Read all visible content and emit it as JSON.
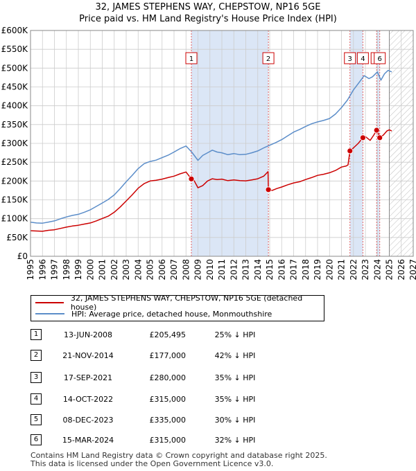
{
  "title_line1": "32, JAMES STEPHENS WAY, CHEPSTOW, NP16 5GE",
  "title_line2": "Price paid vs. HM Land Registry's House Price Index (HPI)",
  "chart_data": {
    "type": "line",
    "xlim": [
      1995,
      2027
    ],
    "ylim": [
      0,
      600000
    ],
    "x_ticks": [
      1995,
      1996,
      1997,
      1998,
      1999,
      2000,
      2001,
      2002,
      2003,
      2004,
      2005,
      2006,
      2007,
      2008,
      2009,
      2010,
      2011,
      2012,
      2013,
      2014,
      2015,
      2016,
      2017,
      2018,
      2019,
      2020,
      2021,
      2022,
      2023,
      2024,
      2025,
      2026,
      2027
    ],
    "y_ticks": [
      0,
      50000,
      100000,
      150000,
      200000,
      250000,
      300000,
      350000,
      400000,
      450000,
      500000,
      550000,
      600000
    ],
    "y_tick_labels": [
      "£0",
      "£50K",
      "£100K",
      "£150K",
      "£200K",
      "£250K",
      "£300K",
      "£350K",
      "£400K",
      "£450K",
      "£500K",
      "£550K",
      "£600K"
    ],
    "shaded_ranges": [
      [
        2008.45,
        2014.89
      ],
      [
        2021.71,
        2022.79
      ],
      [
        2023.94,
        2024.2
      ]
    ],
    "future_start": 2025.0,
    "colors": {
      "property": "#cc0000",
      "hpi": "#5b8dc9",
      "shade": "#dbe6f6",
      "marker_line": "#e05050",
      "grid": "#cccccc"
    },
    "series": [
      {
        "name": "32, JAMES STEPHENS WAY, CHEPSTOW, NP16 5GE (detached house)",
        "color": "#cc0000",
        "points": [
          [
            1995.0,
            68000
          ],
          [
            1996.0,
            66500
          ],
          [
            1996.5,
            69000
          ],
          [
            1997.0,
            70500
          ],
          [
            1997.5,
            74000
          ],
          [
            1998.0,
            77500
          ],
          [
            1998.5,
            80500
          ],
          [
            1999.0,
            82500
          ],
          [
            1999.5,
            85500
          ],
          [
            2000.0,
            88500
          ],
          [
            2000.5,
            94000
          ],
          [
            2001.0,
            100500
          ],
          [
            2001.5,
            106500
          ],
          [
            2002.0,
            117000
          ],
          [
            2002.5,
            131000
          ],
          [
            2003.0,
            147000
          ],
          [
            2003.5,
            163000
          ],
          [
            2004.0,
            181000
          ],
          [
            2004.5,
            193000
          ],
          [
            2005.0,
            200000
          ],
          [
            2005.5,
            202000
          ],
          [
            2006.0,
            205000
          ],
          [
            2006.5,
            209000
          ],
          [
            2007.0,
            213000
          ],
          [
            2007.5,
            219000
          ],
          [
            2008.0,
            224000
          ],
          [
            2008.45,
            205495
          ],
          [
            2008.7,
            200000
          ],
          [
            2009.0,
            182000
          ],
          [
            2009.4,
            188000
          ],
          [
            2009.8,
            200000
          ],
          [
            2010.2,
            206000
          ],
          [
            2010.6,
            204000
          ],
          [
            2011.0,
            205000
          ],
          [
            2011.5,
            201000
          ],
          [
            2012.0,
            203000
          ],
          [
            2012.5,
            201000
          ],
          [
            2013.0,
            200500
          ],
          [
            2013.5,
            203000
          ],
          [
            2014.0,
            206000
          ],
          [
            2014.5,
            213000
          ],
          [
            2014.86,
            225000
          ],
          [
            2014.89,
            177000
          ],
          [
            2015.2,
            175000
          ],
          [
            2015.6,
            180000
          ],
          [
            2016.0,
            184000
          ],
          [
            2016.5,
            190000
          ],
          [
            2017.0,
            195000
          ],
          [
            2017.5,
            198000
          ],
          [
            2018.0,
            204000
          ],
          [
            2018.5,
            209000
          ],
          [
            2019.0,
            215000
          ],
          [
            2019.5,
            218000
          ],
          [
            2020.0,
            222000
          ],
          [
            2020.5,
            228000
          ],
          [
            2021.0,
            237000
          ],
          [
            2021.4,
            240000
          ],
          [
            2021.55,
            243000
          ],
          [
            2021.71,
            280000
          ],
          [
            2022.0,
            288000
          ],
          [
            2022.4,
            300000
          ],
          [
            2022.79,
            315000
          ],
          [
            2023.0,
            318000
          ],
          [
            2023.4,
            308000
          ],
          [
            2023.7,
            322000
          ],
          [
            2023.94,
            335000
          ],
          [
            2024.1,
            325000
          ],
          [
            2024.2,
            315000
          ],
          [
            2024.5,
            322000
          ],
          [
            2024.8,
            333000
          ],
          [
            2025.0,
            336000
          ],
          [
            2025.2,
            333000
          ]
        ]
      },
      {
        "name": "HPI: Average price, detached house, Monmouthshire",
        "color": "#5b8dc9",
        "points": [
          [
            1995.0,
            90500
          ],
          [
            1995.5,
            88500
          ],
          [
            1996.0,
            88000
          ],
          [
            1996.5,
            91000
          ],
          [
            1997.0,
            94000
          ],
          [
            1997.5,
            99500
          ],
          [
            1998.0,
            104500
          ],
          [
            1998.5,
            108500
          ],
          [
            1999.0,
            111500
          ],
          [
            1999.5,
            117000
          ],
          [
            2000.0,
            123500
          ],
          [
            2000.5,
            132500
          ],
          [
            2001.0,
            141500
          ],
          [
            2001.5,
            151000
          ],
          [
            2002.0,
            163000
          ],
          [
            2002.5,
            180000
          ],
          [
            2003.0,
            198000
          ],
          [
            2003.5,
            215000
          ],
          [
            2004.0,
            233000
          ],
          [
            2004.5,
            246000
          ],
          [
            2005.0,
            252000
          ],
          [
            2005.5,
            255500
          ],
          [
            2006.0,
            262000
          ],
          [
            2006.5,
            268500
          ],
          [
            2007.0,
            277000
          ],
          [
            2007.5,
            286000
          ],
          [
            2008.0,
            293000
          ],
          [
            2008.5,
            276000
          ],
          [
            2009.0,
            255000
          ],
          [
            2009.4,
            268000
          ],
          [
            2009.8,
            275000
          ],
          [
            2010.2,
            282000
          ],
          [
            2010.6,
            277000
          ],
          [
            2011.0,
            275000
          ],
          [
            2011.5,
            270000
          ],
          [
            2012.0,
            273000
          ],
          [
            2012.5,
            270000
          ],
          [
            2013.0,
            271000
          ],
          [
            2013.5,
            275000
          ],
          [
            2014.0,
            280000
          ],
          [
            2014.5,
            288000
          ],
          [
            2015.0,
            295000
          ],
          [
            2015.5,
            302000
          ],
          [
            2016.0,
            310000
          ],
          [
            2016.5,
            320000
          ],
          [
            2017.0,
            330000
          ],
          [
            2017.5,
            337000
          ],
          [
            2018.0,
            345000
          ],
          [
            2018.5,
            352000
          ],
          [
            2019.0,
            357000
          ],
          [
            2019.5,
            361000
          ],
          [
            2020.0,
            366000
          ],
          [
            2020.5,
            378000
          ],
          [
            2021.0,
            395000
          ],
          [
            2021.5,
            415000
          ],
          [
            2022.0,
            442000
          ],
          [
            2022.5,
            463000
          ],
          [
            2022.9,
            480000
          ],
          [
            2023.3,
            472000
          ],
          [
            2023.6,
            477000
          ],
          [
            2024.0,
            490000
          ],
          [
            2024.3,
            468000
          ],
          [
            2024.6,
            485000
          ],
          [
            2024.9,
            494000
          ],
          [
            2025.2,
            490000
          ]
        ]
      }
    ],
    "sales": [
      {
        "n": "1",
        "x": 2008.45,
        "y": 205495
      },
      {
        "n": "2",
        "x": 2014.89,
        "y": 177000
      },
      {
        "n": "3",
        "x": 2021.71,
        "y": 280000
      },
      {
        "n": "4",
        "x": 2022.79,
        "y": 315000
      },
      {
        "n": "5",
        "x": 2023.94,
        "y": 335000
      },
      {
        "n": "6",
        "x": 2024.2,
        "y": 315000
      }
    ]
  },
  "legend": {
    "property_label": "32, JAMES STEPHENS WAY, CHEPSTOW, NP16 5GE (detached house)",
    "hpi_label": "HPI: Average price, detached house, Monmouthshire"
  },
  "sales_table": [
    {
      "n": "1",
      "date": "13-JUN-2008",
      "price": "£205,495",
      "hpi": "25% ↓ HPI"
    },
    {
      "n": "2",
      "date": "21-NOV-2014",
      "price": "£177,000",
      "hpi": "42% ↓ HPI"
    },
    {
      "n": "3",
      "date": "17-SEP-2021",
      "price": "£280,000",
      "hpi": "35% ↓ HPI"
    },
    {
      "n": "4",
      "date": "14-OCT-2022",
      "price": "£315,000",
      "hpi": "35% ↓ HPI"
    },
    {
      "n": "5",
      "date": "08-DEC-2023",
      "price": "£335,000",
      "hpi": "30% ↓ HPI"
    },
    {
      "n": "6",
      "date": "15-MAR-2024",
      "price": "£315,000",
      "hpi": "32% ↓ HPI"
    }
  ],
  "footer_line1": "Contains HM Land Registry data © Crown copyright and database right 2025.",
  "footer_line2": "This data is licensed under the Open Government Licence v3.0."
}
